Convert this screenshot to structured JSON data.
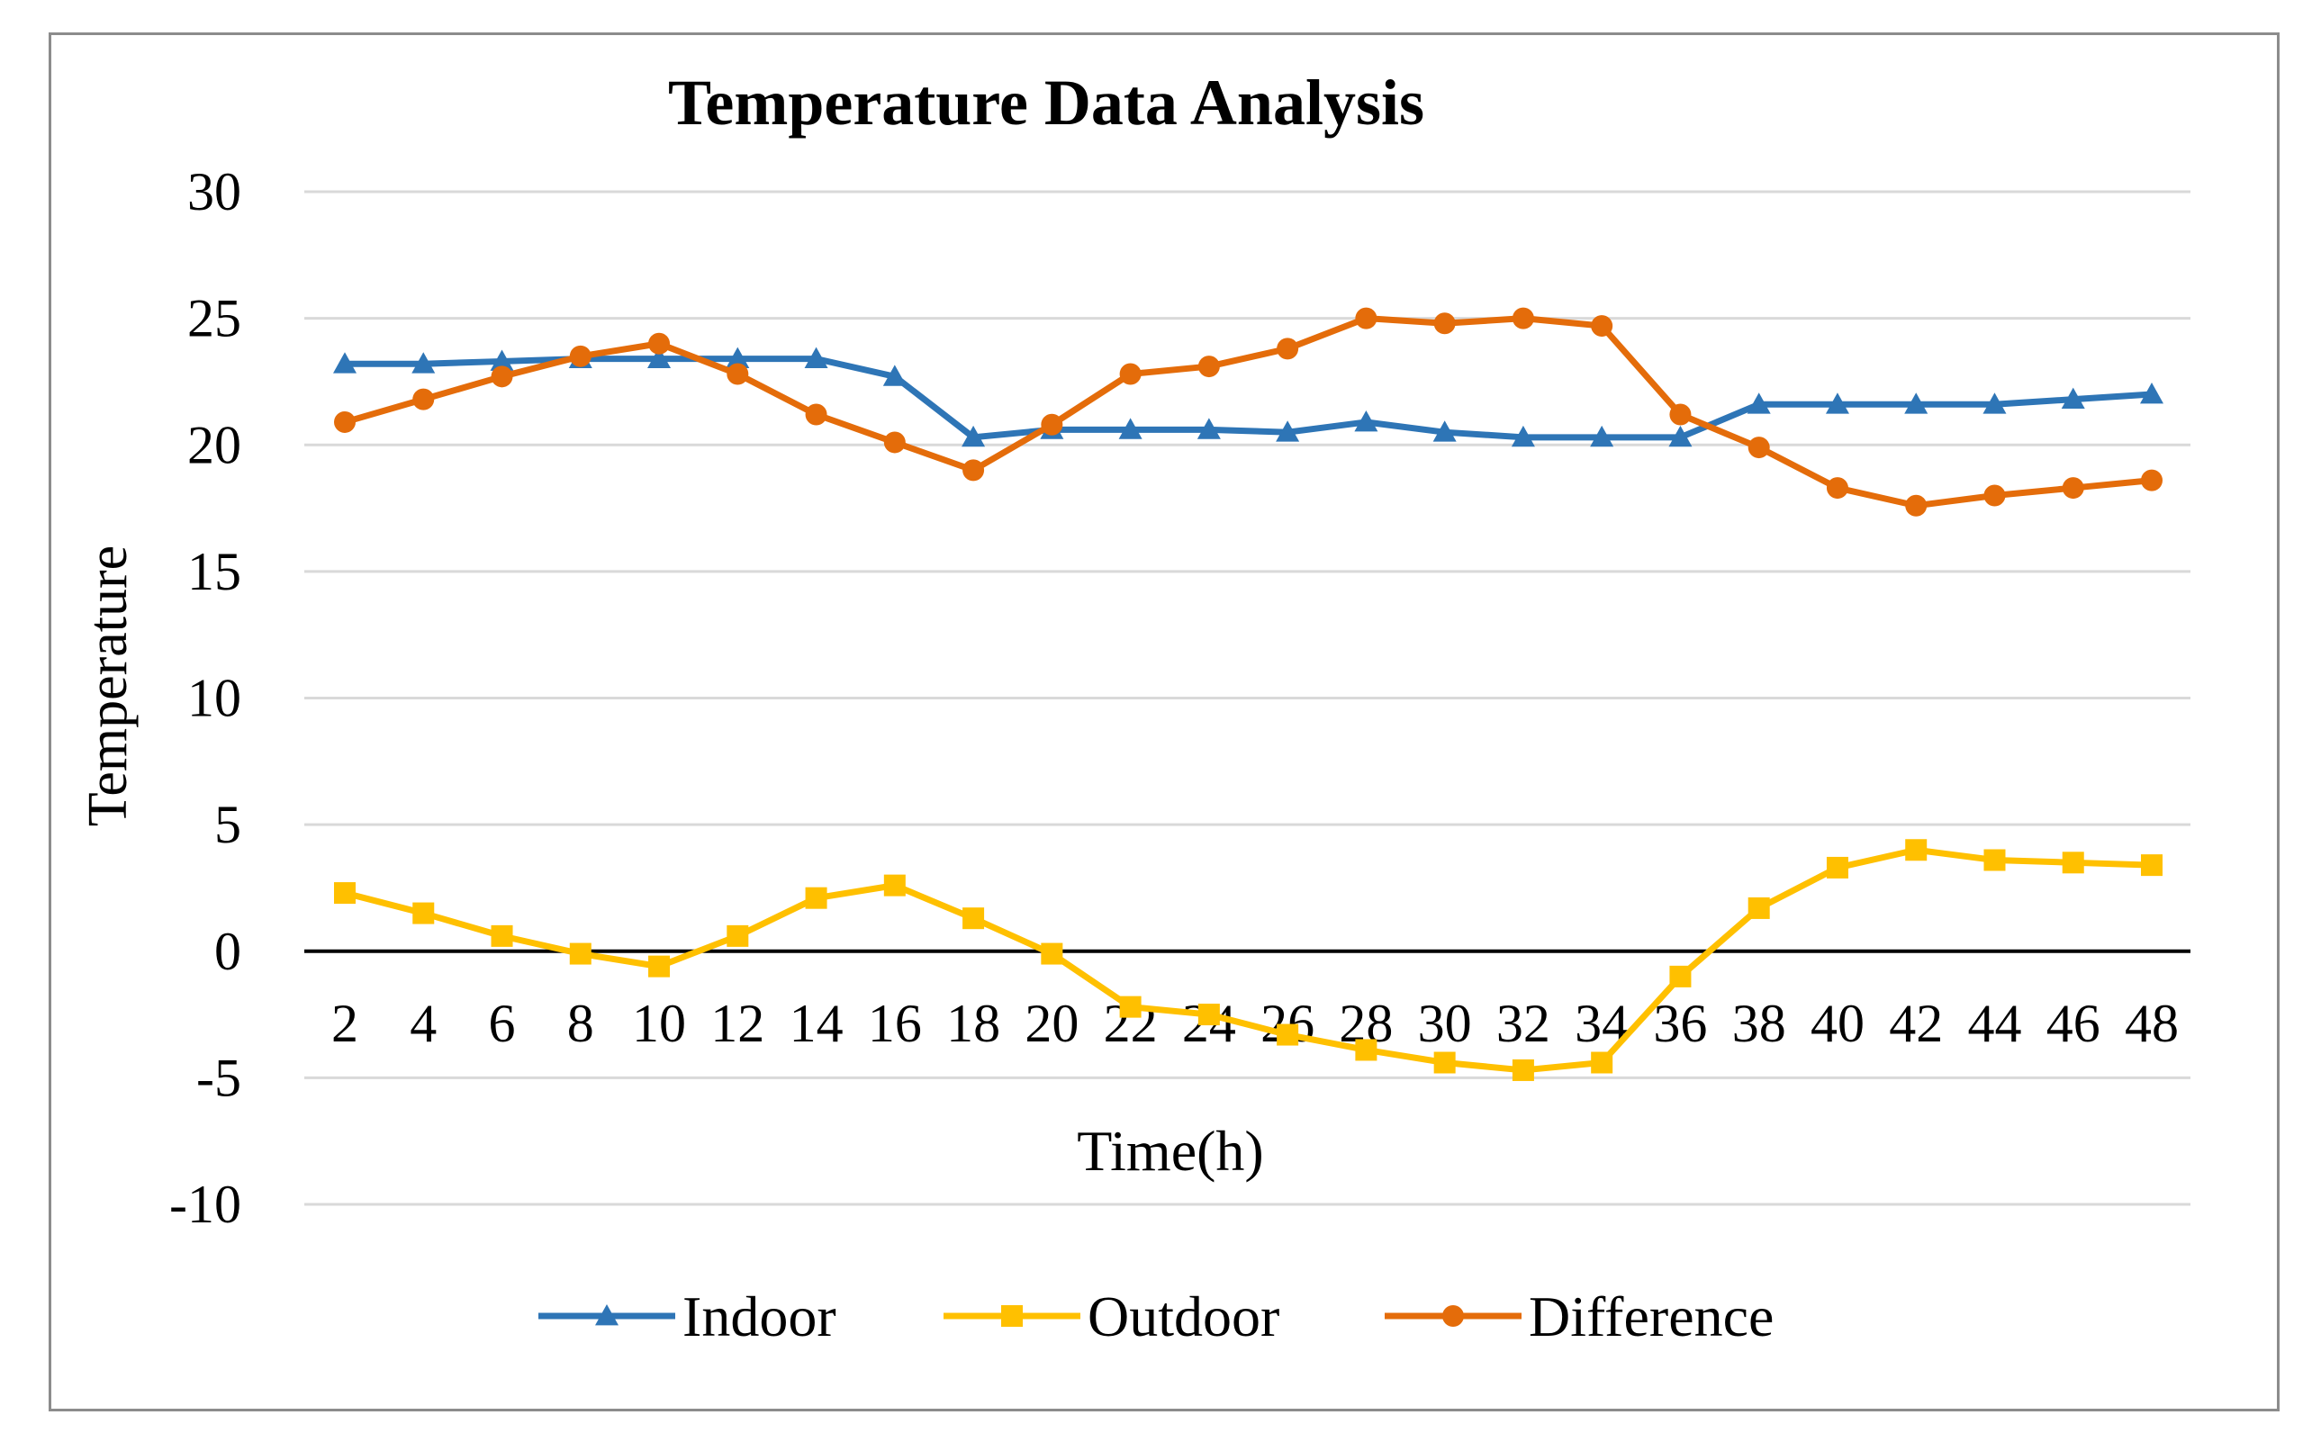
{
  "chart_data": {
    "type": "line",
    "title": "Temperature Data Analysis",
    "xlabel": "Time(h)",
    "ylabel": "Temperature",
    "ylim": [
      -10,
      30
    ],
    "yticks": [
      -10,
      -5,
      0,
      5,
      10,
      15,
      20,
      25,
      30
    ],
    "grid": true,
    "legend_position": "bottom",
    "categories": [
      "2",
      "4",
      "6",
      "8",
      "10",
      "12",
      "14",
      "16",
      "18",
      "20",
      "22",
      "24",
      "26",
      "28",
      "30",
      "32",
      "34",
      "36",
      "38",
      "40",
      "42",
      "44",
      "46",
      "48"
    ],
    "series": [
      {
        "name": "Indoor",
        "color": "#2E75B6",
        "marker": "triangle",
        "values": [
          23.2,
          23.2,
          23.3,
          23.4,
          23.4,
          23.4,
          23.4,
          22.7,
          20.3,
          20.6,
          20.6,
          20.6,
          20.5,
          20.9,
          20.5,
          20.3,
          20.3,
          20.3,
          21.6,
          21.6,
          21.6,
          21.6,
          21.8,
          22.0
        ]
      },
      {
        "name": "Outdoor",
        "color": "#FFC000",
        "marker": "square",
        "values": [
          2.3,
          1.5,
          0.6,
          -0.1,
          -0.6,
          0.6,
          2.1,
          2.6,
          1.3,
          -0.1,
          -2.2,
          -2.5,
          -3.3,
          -3.9,
          -4.4,
          -4.7,
          -4.4,
          -1.0,
          1.7,
          3.3,
          4.0,
          3.6,
          3.5,
          3.4
        ]
      },
      {
        "name": "Difference",
        "color": "#E46C0A",
        "marker": "circle",
        "values": [
          20.9,
          21.8,
          22.7,
          23.5,
          24.0,
          22.8,
          21.2,
          20.1,
          19.0,
          20.8,
          22.8,
          23.1,
          23.8,
          25.0,
          24.8,
          25.0,
          24.7,
          21.2,
          19.9,
          18.3,
          17.6,
          18.0,
          18.3,
          18.6
        ]
      }
    ]
  }
}
